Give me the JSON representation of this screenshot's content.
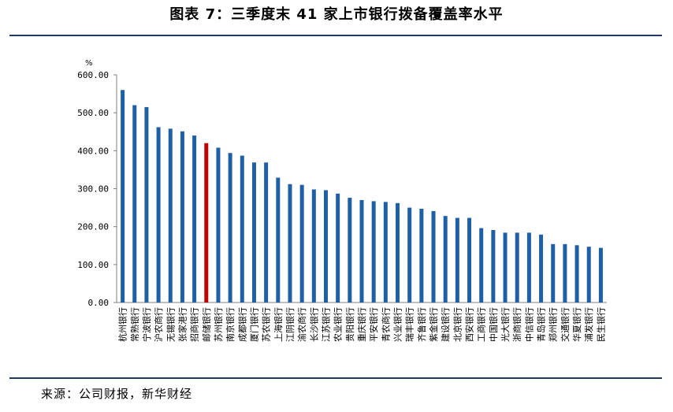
{
  "header": {
    "title": "图表 7：三季度末 41 家上市银行拨备覆盖率水平"
  },
  "footer": {
    "source": "来源：公司财报，新华财经"
  },
  "colors": {
    "bar": "#1f5fa5",
    "highlight": "#c00000",
    "axis": "#7f7f7f",
    "rule": "#1f3864"
  },
  "chart_data": {
    "type": "bar",
    "title": "三季度末 41 家上市银行拨备覆盖率水平",
    "ylabel": "%",
    "xlabel": "",
    "ylim": [
      0,
      600
    ],
    "yticks": [
      0,
      100,
      200,
      300,
      400,
      500,
      600
    ],
    "ytick_labels": [
      "0.00",
      "100.00",
      "200.00",
      "300.00",
      "400.00",
      "500.00",
      "600.00"
    ],
    "grid": false,
    "highlight_category": "邮储银行",
    "categories": [
      "杭州银行",
      "常熟银行",
      "宁波银行",
      "沪农商行",
      "无锡银行",
      "张家港行",
      "招商银行",
      "邮储银行",
      "苏州银行",
      "南京银行",
      "成都银行",
      "厦门银行",
      "苏农银行",
      "上海银行",
      "江阴银行",
      "渝农商行",
      "长沙银行",
      "江苏银行",
      "农业银行",
      "贵阳银行",
      "重庆银行",
      "平安银行",
      "青农商行",
      "兴业银行",
      "瑞丰银行",
      "齐鲁银行",
      "紫金银行",
      "建设银行",
      "北京银行",
      "西安银行",
      "工商银行",
      "中国银行",
      "光大银行",
      "浙商银行",
      "中信银行",
      "青岛银行",
      "郑州银行",
      "交通银行",
      "华夏银行",
      "浦发银行",
      "民生银行"
    ],
    "values": [
      560,
      520,
      515,
      462,
      458,
      451,
      440,
      420,
      408,
      394,
      387,
      369,
      369,
      329,
      312,
      310,
      298,
      296,
      287,
      276,
      270,
      267,
      265,
      262,
      250,
      247,
      241,
      228,
      223,
      223,
      196,
      191,
      184,
      184,
      184,
      179,
      154,
      154,
      151,
      147,
      144
    ]
  }
}
